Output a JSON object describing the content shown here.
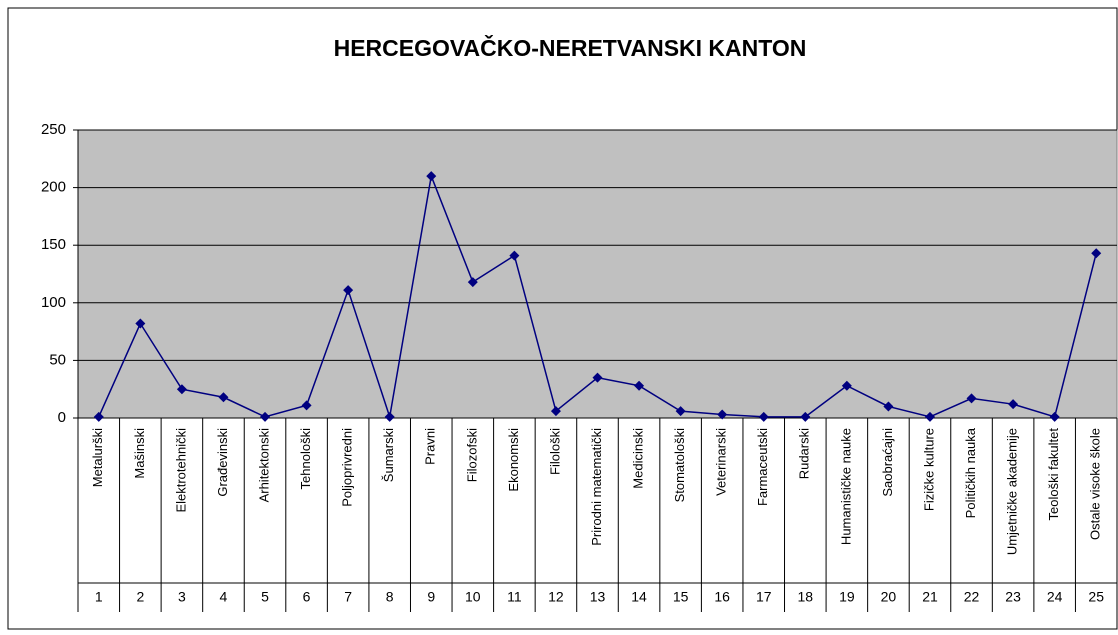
{
  "chart_data": {
    "type": "line",
    "title": "HERCEGOVAČKO-NERETVANSKI KANTON",
    "categories": [
      "Metalurški",
      "Mašinski",
      "Elektrotehnički",
      "Građevinski",
      "Arhitektonski",
      "Tehnološki",
      "Poljoprivredni",
      "Šumarski",
      "Pravni",
      "Filozofski",
      "Ekonomski",
      "Filološki",
      "Prirodni matematički",
      "Medicinski",
      "Stomatološki",
      "Veterinarski",
      "Farmaceutski",
      "Rudarski",
      "Humanističke nauke",
      "Saobraćajni",
      "Fizičke kulture",
      "Političkih nauka",
      "Umjetničke akademije",
      "Teološki fakultet",
      "Ostale visoke škole"
    ],
    "category_numbers": [
      1,
      2,
      3,
      4,
      5,
      6,
      7,
      8,
      9,
      10,
      11,
      12,
      13,
      14,
      15,
      16,
      17,
      18,
      19,
      20,
      21,
      22,
      23,
      24,
      25
    ],
    "values": [
      1,
      82,
      25,
      18,
      1,
      11,
      111,
      1,
      210,
      118,
      141,
      6,
      35,
      28,
      6,
      3,
      1,
      1,
      28,
      10,
      1,
      17,
      12,
      1,
      143
    ],
    "color": "#000080",
    "plot_background": "#c0c0c0",
    "ylim": [
      0,
      250
    ],
    "yticks": [
      0,
      50,
      100,
      150,
      200,
      250
    ],
    "grid": true
  }
}
